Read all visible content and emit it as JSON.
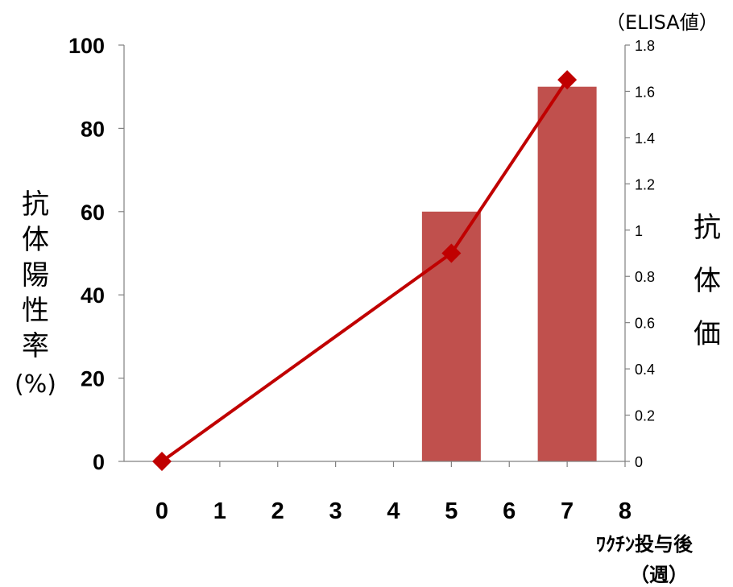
{
  "chart_data": {
    "type": "bar+line",
    "x": [
      0,
      1,
      2,
      3,
      4,
      5,
      6,
      7,
      8
    ],
    "x_tick_labels": [
      "0",
      "1",
      "2",
      "3",
      "4",
      "5",
      "6",
      "7",
      "8"
    ],
    "xlim": [
      0,
      8
    ],
    "series": [
      {
        "type": "bar",
        "axis": "left",
        "x": [
          5,
          7
        ],
        "values": [
          60,
          90
        ],
        "color": "#c0504d"
      },
      {
        "type": "line",
        "axis": "right",
        "marker": "diamond",
        "x": [
          0,
          5,
          7
        ],
        "values": [
          0,
          0.9,
          1.65
        ],
        "color": "#c00000"
      }
    ],
    "y_left": {
      "label_chars": [
        "抗",
        "体",
        "陽",
        "性",
        "率"
      ],
      "label_unit": "(%)",
      "ylim": [
        0,
        100
      ],
      "ticks": [
        0,
        20,
        40,
        60,
        80,
        100
      ]
    },
    "y_right": {
      "label_chars": [
        "抗",
        "体",
        "価"
      ],
      "unit": "（ELISA値）",
      "ylim": [
        0,
        1.8
      ],
      "ticks": [
        0,
        0.2,
        0.4,
        0.6,
        0.8,
        1,
        1.2,
        1.4,
        1.6,
        1.8
      ],
      "tick_labels": [
        "0",
        "0.2",
        "0.4",
        "0.6",
        "0.8",
        "1",
        "1.2",
        "1.4",
        "1.6",
        "1.8"
      ]
    },
    "xlabel": "ﾜｸﾁﾝ投与後",
    "xlabel_unit": "（週）",
    "grid": false
  }
}
